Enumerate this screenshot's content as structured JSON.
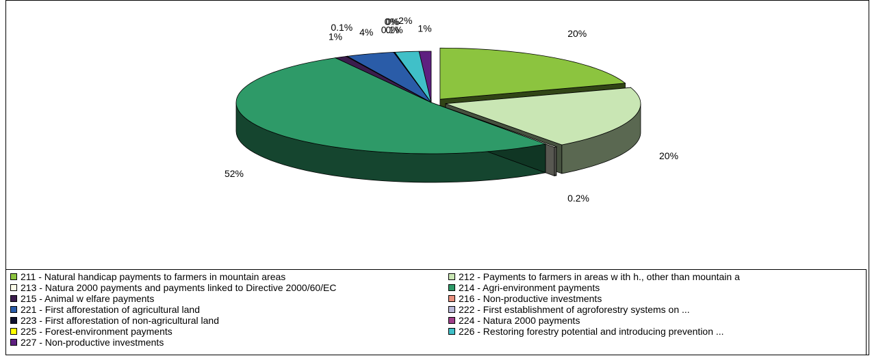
{
  "chart_data": {
    "type": "pie3d",
    "categories": [
      "211 - Natural handicap payments to farmers in mountain areas",
      "212 - Payments to farmers in areas w ith h., other than mountain a",
      "213 - Natura 2000 payments and payments linked to Directive 2000/60/EC",
      "214 - Agri-environment payments",
      "215 - Animal w elfare payments",
      "216 - Non-productive investments",
      "221 - First afforestation of agricultural land",
      "222 - First establishment of agroforestry systems on ...",
      "223 - First afforestation of non-agricultural land",
      "224 - Natura 2000 payments",
      "225 - Forest-environment payments",
      "226 - Restoring forestry potential and introducing prevention ...",
      "227 - Non-productive investments"
    ],
    "values": [
      20,
      20,
      0.2,
      52,
      1,
      0.1,
      4,
      0,
      0.1,
      0,
      0,
      2,
      1
    ],
    "value_labels": [
      "20%",
      "20%",
      "0.2%",
      "52%",
      "1%",
      "0.1%",
      "4%",
      "0%",
      "0.1%",
      "0%",
      "0%",
      "2%",
      "1%"
    ],
    "colors": [
      "#8cc43f",
      "#c9e6b4",
      "#fbfbe8",
      "#2e9a68",
      "#3b1d4d",
      "#e8907e",
      "#2a5ca8",
      "#b9b8d8",
      "#10122e",
      "#a0408a",
      "#ffff00",
      "#40c0c8",
      "#5e2080"
    ]
  }
}
